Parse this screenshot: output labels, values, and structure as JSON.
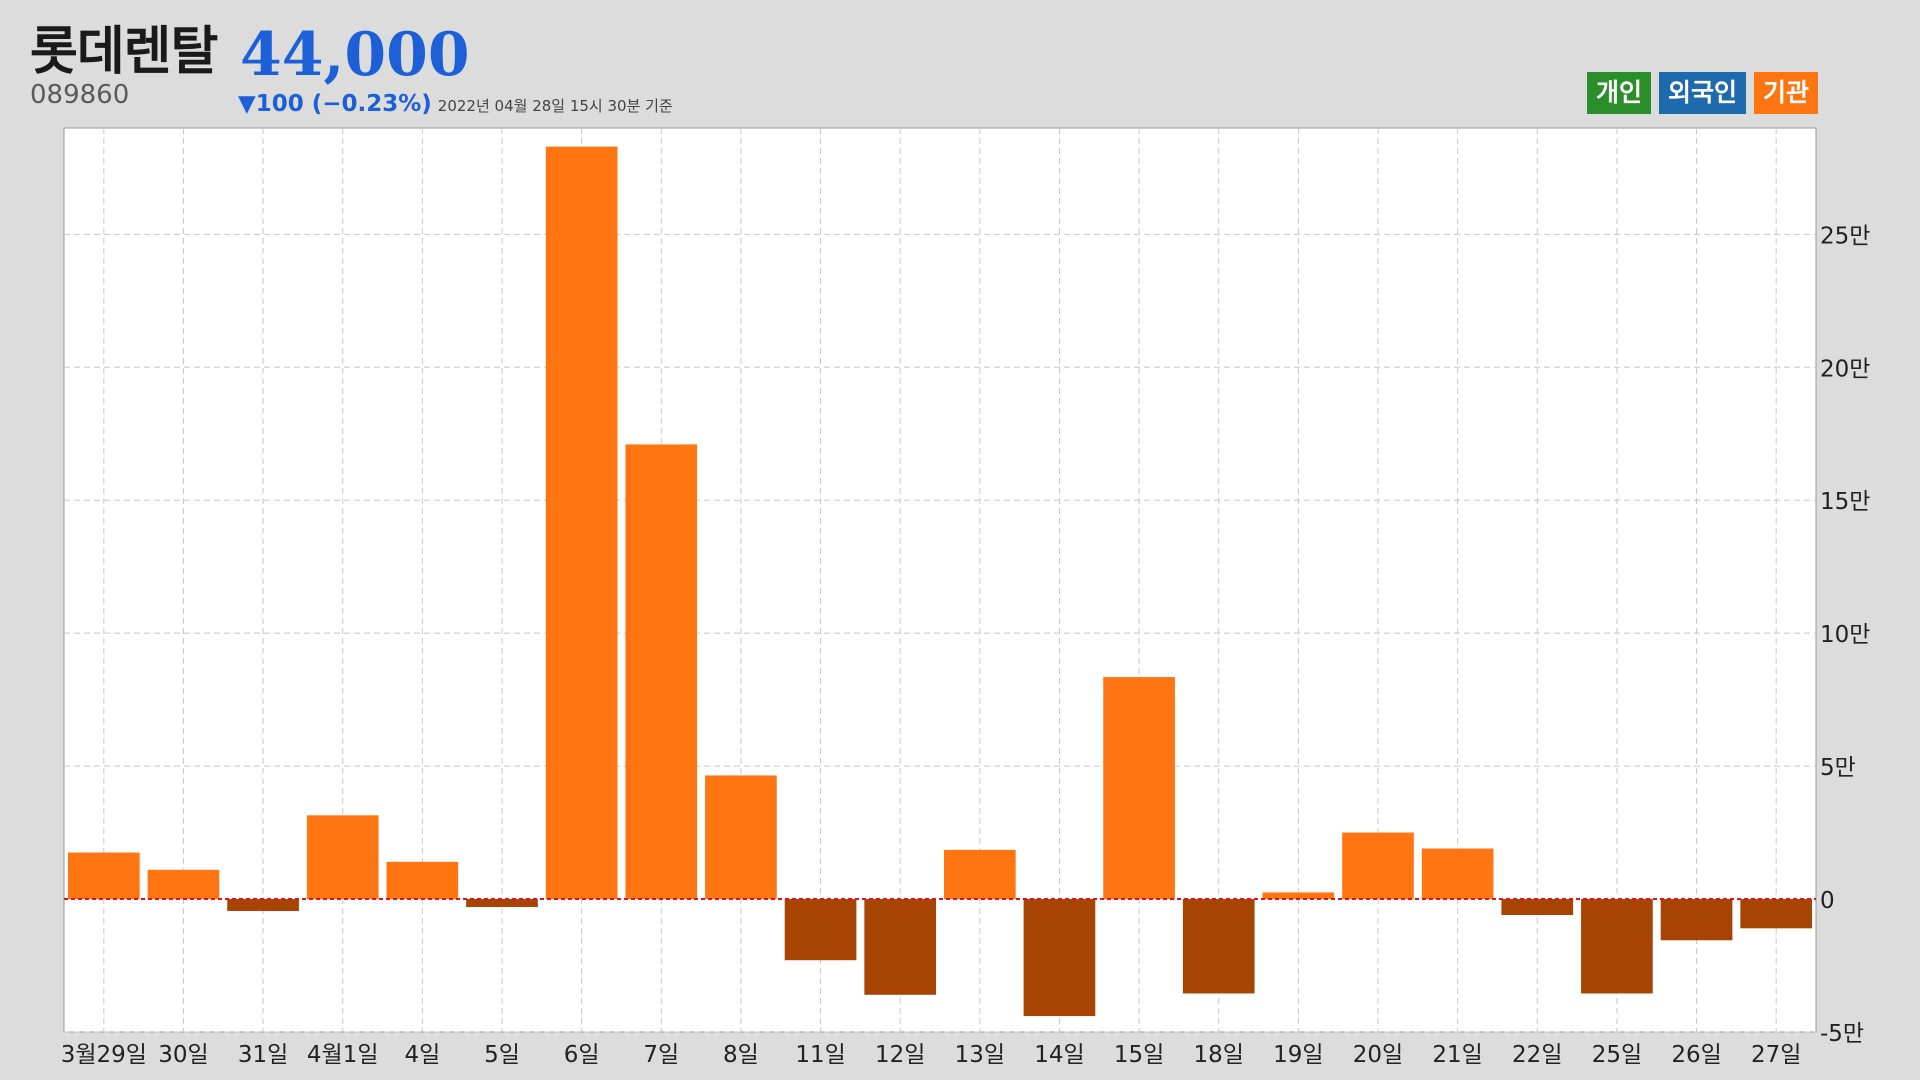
{
  "header": {
    "name": "롯데렌탈",
    "code": "089860",
    "price": "44,000",
    "change": "▼100 (−0.23%)",
    "timestamp": "2022년 04월 28일 15시 30분 기준",
    "price_color": "#1c5fd6"
  },
  "legend": [
    {
      "label": "개인",
      "color": "#2a8f2a"
    },
    {
      "label": "외국인",
      "color": "#1d6aad"
    },
    {
      "label": "기관",
      "color": "#ff7512"
    }
  ],
  "chart_data": {
    "type": "bar",
    "title": "",
    "xlabel": "",
    "ylabel": "",
    "categories": [
      "3월29일",
      "30일",
      "31일",
      "4월1일",
      "4일",
      "5일",
      "6일",
      "7일",
      "8일",
      "11일",
      "12일",
      "13일",
      "14일",
      "15일",
      "18일",
      "19일",
      "20일",
      "21일",
      "22일",
      "25일",
      "26일",
      "27일"
    ],
    "series": [
      {
        "values": [
          17500,
          11000,
          -4500,
          31500,
          14000,
          -3000,
          283000,
          171000,
          46500,
          -23000,
          -36000,
          18500,
          -44000,
          83500,
          -35500,
          2500,
          25000,
          19000,
          -6000,
          -35500,
          -15500,
          -11000
        ]
      }
    ],
    "ylim": [
      -50000,
      290000
    ],
    "yticks": [
      {
        "value": 250000,
        "label": "25만"
      },
      {
        "value": 200000,
        "label": "20만"
      },
      {
        "value": 150000,
        "label": "15만"
      },
      {
        "value": 100000,
        "label": "10만"
      },
      {
        "value": 50000,
        "label": "5만"
      },
      {
        "value": 0,
        "label": "0"
      },
      {
        "value": -50000,
        "label": "-5만"
      }
    ],
    "y_axis_side": "right",
    "grid": true,
    "positive_color": "#ff7512",
    "negative_color": "#a74303",
    "zero_line_color": "#e0141e"
  }
}
